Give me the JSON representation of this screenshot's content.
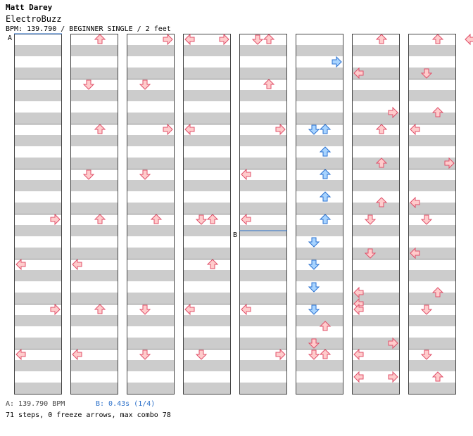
{
  "header": {
    "artist": "Matt Darey",
    "title": "ElectroBuzz",
    "info": "BPM: 139.790 / BEGINNER SINGLE / 2 feet"
  },
  "markers": {
    "a": "A",
    "b": "B"
  },
  "footer": {
    "bpm_change": "A: 139.790 BPM",
    "stop": "B: 0.43s (1/4)",
    "summary": "71 steps, 0 freeze arrows, max combo 78"
  },
  "colors": {
    "stripe": "#cccccc",
    "border": "#444444",
    "arrow_red_fill": "#ffcccc",
    "arrow_red_stroke": "#e0506a",
    "arrow_blue_fill": "#a8d4ff",
    "arrow_blue_stroke": "#2a70d0",
    "bpm_line": "#2a6fc9"
  },
  "chart_data": {
    "type": "stepchart",
    "measures_per_column": 8,
    "rows_per_measure": 4,
    "lanes": [
      "left",
      "down",
      "up",
      "right"
    ],
    "steps": [
      {
        "column": 0,
        "measure": 4,
        "beat": 0,
        "lane": "right",
        "color": "red"
      },
      {
        "column": 0,
        "measure": 5,
        "beat": 0,
        "lane": "left",
        "color": "red"
      },
      {
        "column": 0,
        "measure": 6,
        "beat": 0,
        "lane": "right",
        "color": "red"
      },
      {
        "column": 0,
        "measure": 7,
        "beat": 0,
        "lane": "left",
        "color": "red"
      },
      {
        "column": 1,
        "measure": 0,
        "beat": 0,
        "lane": "up",
        "color": "red"
      },
      {
        "column": 1,
        "measure": 1,
        "beat": 0,
        "lane": "down",
        "color": "red"
      },
      {
        "column": 1,
        "measure": 2,
        "beat": 0,
        "lane": "up",
        "color": "red"
      },
      {
        "column": 1,
        "measure": 3,
        "beat": 0,
        "lane": "down",
        "color": "red"
      },
      {
        "column": 1,
        "measure": 4,
        "beat": 0,
        "lane": "up",
        "color": "red"
      },
      {
        "column": 1,
        "measure": 5,
        "beat": 0,
        "lane": "left",
        "color": "red"
      },
      {
        "column": 1,
        "measure": 6,
        "beat": 0,
        "lane": "up",
        "color": "red"
      },
      {
        "column": 1,
        "measure": 7,
        "beat": 0,
        "lane": "left",
        "color": "red"
      },
      {
        "column": 2,
        "measure": 0,
        "beat": 0,
        "lane": "right",
        "color": "red"
      },
      {
        "column": 2,
        "measure": 1,
        "beat": 0,
        "lane": "down",
        "color": "red"
      },
      {
        "column": 2,
        "measure": 2,
        "beat": 0,
        "lane": "right",
        "color": "red"
      },
      {
        "column": 2,
        "measure": 3,
        "beat": 0,
        "lane": "down",
        "color": "red"
      },
      {
        "column": 2,
        "measure": 4,
        "beat": 0,
        "lane": "up",
        "color": "red"
      },
      {
        "column": 2,
        "measure": 6,
        "beat": 0,
        "lane": "down",
        "color": "red"
      },
      {
        "column": 2,
        "measure": 7,
        "beat": 0,
        "lane": "down",
        "color": "red"
      },
      {
        "column": 3,
        "measure": 0,
        "beat": 0,
        "lane": "left",
        "color": "red"
      },
      {
        "column": 3,
        "measure": 0,
        "beat": 0,
        "lane": "right",
        "color": "red"
      },
      {
        "column": 3,
        "measure": 2,
        "beat": 0,
        "lane": "left",
        "color": "red"
      },
      {
        "column": 3,
        "measure": 4,
        "beat": 0,
        "lane": "down",
        "color": "red"
      },
      {
        "column": 3,
        "measure": 4,
        "beat": 0,
        "lane": "up",
        "color": "red"
      },
      {
        "column": 3,
        "measure": 5,
        "beat": 0,
        "lane": "up",
        "color": "red"
      },
      {
        "column": 3,
        "measure": 6,
        "beat": 0,
        "lane": "left",
        "color": "red"
      },
      {
        "column": 3,
        "measure": 7,
        "beat": 0,
        "lane": "down",
        "color": "red"
      },
      {
        "column": 4,
        "measure": 0,
        "beat": 0,
        "lane": "down",
        "color": "red"
      },
      {
        "column": 4,
        "measure": 0,
        "beat": 0,
        "lane": "up",
        "color": "red"
      },
      {
        "column": 4,
        "measure": 1,
        "beat": 0,
        "lane": "up",
        "color": "red"
      },
      {
        "column": 4,
        "measure": 2,
        "beat": 0,
        "lane": "right",
        "color": "red"
      },
      {
        "column": 4,
        "measure": 3,
        "beat": 0,
        "lane": "left",
        "color": "red"
      },
      {
        "column": 4,
        "measure": 4,
        "beat": 0,
        "lane": "left",
        "color": "red"
      },
      {
        "column": 4,
        "measure": 6,
        "beat": 0,
        "lane": "left",
        "color": "red"
      },
      {
        "column": 4,
        "measure": 7,
        "beat": 0,
        "lane": "right",
        "color": "red"
      },
      {
        "column": 5,
        "measure": 0,
        "beat": 2,
        "lane": "right",
        "color": "blue"
      },
      {
        "column": 5,
        "measure": 2,
        "beat": 0,
        "lane": "down",
        "color": "blue"
      },
      {
        "column": 5,
        "measure": 2,
        "beat": 0,
        "lane": "up",
        "color": "blue"
      },
      {
        "column": 5,
        "measure": 2,
        "beat": 2,
        "lane": "up",
        "color": "blue"
      },
      {
        "column": 5,
        "measure": 3,
        "beat": 0,
        "lane": "up",
        "color": "blue"
      },
      {
        "column": 5,
        "measure": 3,
        "beat": 2,
        "lane": "up",
        "color": "blue"
      },
      {
        "column": 5,
        "measure": 4,
        "beat": 0,
        "lane": "up",
        "color": "blue"
      },
      {
        "column": 5,
        "measure": 4,
        "beat": 2,
        "lane": "down",
        "color": "blue"
      },
      {
        "column": 5,
        "measure": 5,
        "beat": 0,
        "lane": "down",
        "color": "blue"
      },
      {
        "column": 5,
        "measure": 5,
        "beat": 2,
        "lane": "down",
        "color": "blue"
      },
      {
        "column": 5,
        "measure": 6,
        "beat": 0,
        "lane": "down",
        "color": "blue"
      },
      {
        "column": 5,
        "measure": 6,
        "beat": 1.5,
        "lane": "up",
        "color": "red"
      },
      {
        "column": 5,
        "measure": 6,
        "beat": 3,
        "lane": "down",
        "color": "red"
      },
      {
        "column": 5,
        "measure": 7,
        "beat": 0,
        "lane": "down",
        "color": "red"
      },
      {
        "column": 5,
        "measure": 7,
        "beat": 0,
        "lane": "up",
        "color": "red"
      },
      {
        "column": 6,
        "measure": 0,
        "beat": 0,
        "lane": "up",
        "color": "red"
      },
      {
        "column": 6,
        "measure": 0,
        "beat": 3,
        "lane": "left",
        "color": "red"
      },
      {
        "column": 6,
        "measure": 1,
        "beat": 2.5,
        "lane": "right",
        "color": "red"
      },
      {
        "column": 6,
        "measure": 2,
        "beat": 0,
        "lane": "up",
        "color": "red"
      },
      {
        "column": 6,
        "measure": 2,
        "beat": 3,
        "lane": "up",
        "color": "red"
      },
      {
        "column": 6,
        "measure": 3,
        "beat": 2.5,
        "lane": "up",
        "color": "red"
      },
      {
        "column": 6,
        "measure": 4,
        "beat": 0,
        "lane": "down",
        "color": "red"
      },
      {
        "column": 6,
        "measure": 4,
        "beat": 3,
        "lane": "down",
        "color": "red"
      },
      {
        "column": 6,
        "measure": 5,
        "beat": 2.5,
        "lane": "left",
        "color": "red"
      },
      {
        "column": 6,
        "measure": 5,
        "beat": 3.5,
        "lane": "left",
        "color": "red"
      },
      {
        "column": 6,
        "measure": 6,
        "beat": 0,
        "lane": "left",
        "color": "red"
      },
      {
        "column": 6,
        "measure": 6,
        "beat": 3,
        "lane": "right",
        "color": "red"
      },
      {
        "column": 6,
        "measure": 7,
        "beat": 0,
        "lane": "left",
        "color": "red"
      },
      {
        "column": 6,
        "measure": 7,
        "beat": 2,
        "lane": "left",
        "color": "red"
      },
      {
        "column": 6,
        "measure": 7,
        "beat": 2,
        "lane": "right",
        "color": "red"
      },
      {
        "column": 7,
        "measure": 0,
        "beat": 0,
        "lane": "up",
        "color": "red"
      },
      {
        "column": 7,
        "measure": 0,
        "beat": 0,
        "lane": "right+",
        "color": "red"
      },
      {
        "column": 7,
        "measure": 0,
        "beat": 3,
        "lane": "down",
        "color": "red"
      },
      {
        "column": 7,
        "measure": 1,
        "beat": 2.5,
        "lane": "up",
        "color": "red"
      },
      {
        "column": 7,
        "measure": 2,
        "beat": 0,
        "lane": "left",
        "color": "red"
      },
      {
        "column": 7,
        "measure": 2,
        "beat": 3,
        "lane": "right",
        "color": "red"
      },
      {
        "column": 7,
        "measure": 3,
        "beat": 2.5,
        "lane": "left",
        "color": "red"
      },
      {
        "column": 7,
        "measure": 4,
        "beat": 0,
        "lane": "down",
        "color": "red"
      },
      {
        "column": 7,
        "measure": 4,
        "beat": 3,
        "lane": "left",
        "color": "red"
      },
      {
        "column": 7,
        "measure": 5,
        "beat": 2.5,
        "lane": "up",
        "color": "red"
      },
      {
        "column": 7,
        "measure": 6,
        "beat": 0,
        "lane": "down",
        "color": "red"
      },
      {
        "column": 7,
        "measure": 7,
        "beat": 0,
        "lane": "down",
        "color": "red"
      },
      {
        "column": 7,
        "measure": 7,
        "beat": 2,
        "lane": "up",
        "color": "red"
      }
    ]
  }
}
